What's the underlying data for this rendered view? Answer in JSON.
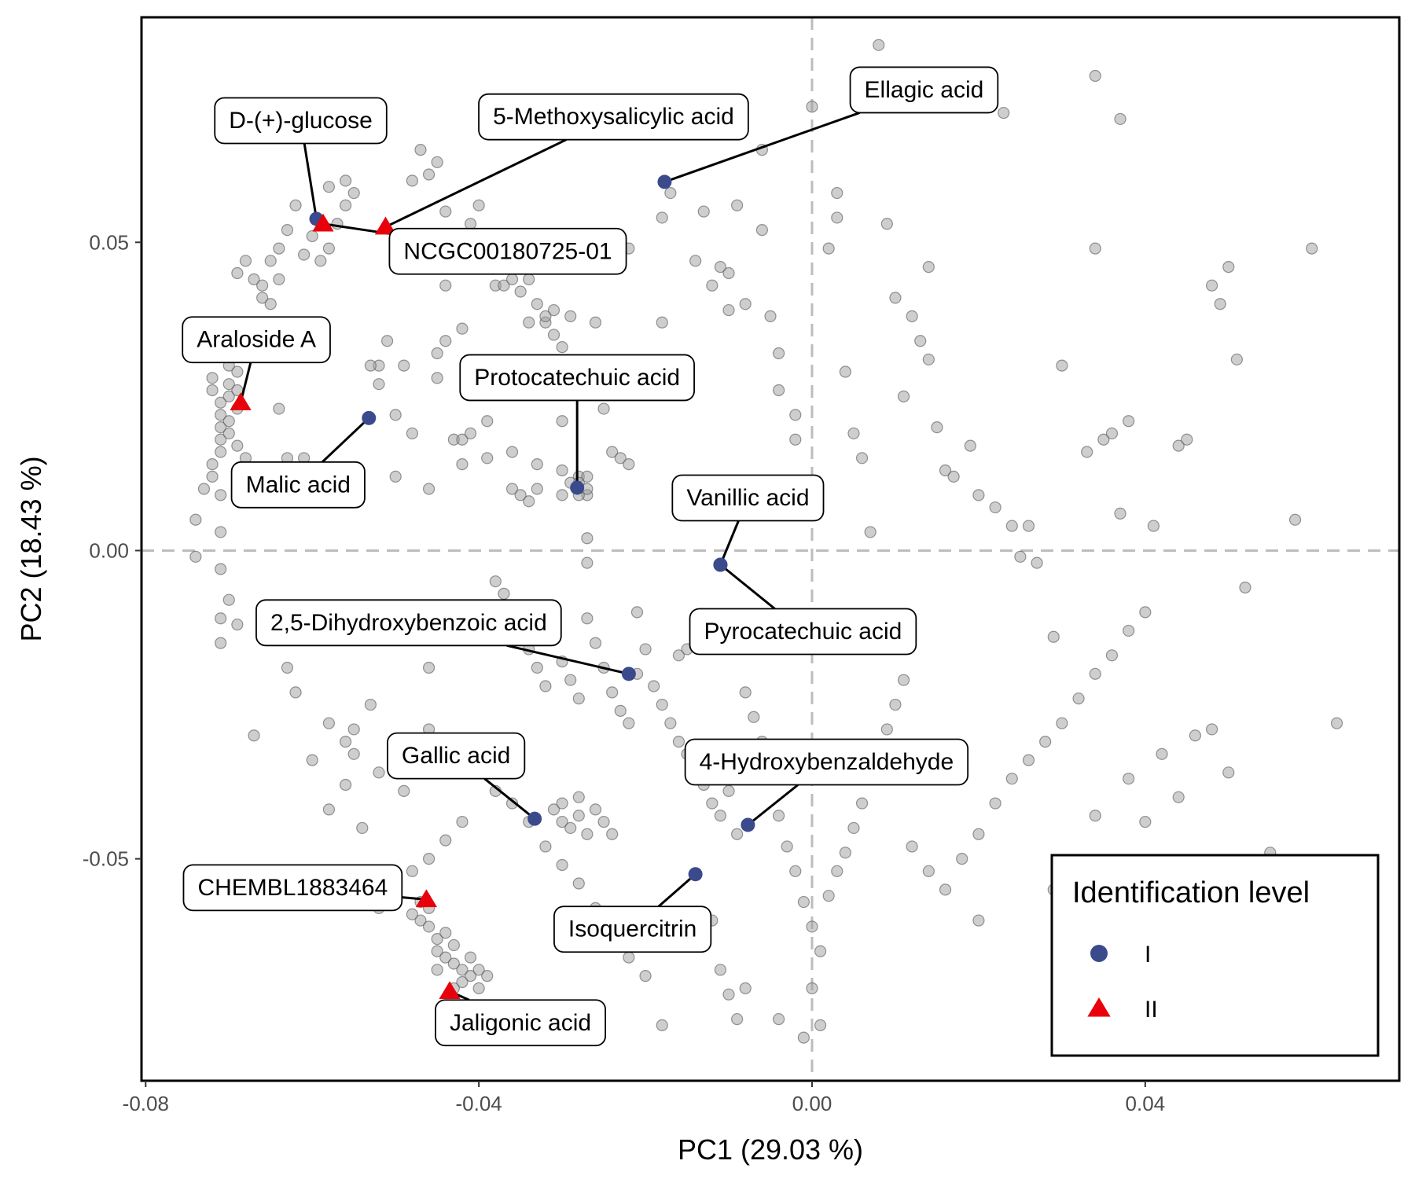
{
  "chart_data": {
    "type": "scatter",
    "xlabel": "PC1 (29.03 %)",
    "ylabel": "PC2 (18.43 %)",
    "xlim": [
      -0.0805,
      0.0705
    ],
    "ylim": [
      -0.086,
      0.0865
    ],
    "x_ticks": [
      -0.08,
      -0.04,
      0.0,
      0.04
    ],
    "x_tick_labels": [
      "-0.08",
      "-0.04",
      "0.00",
      "0.04"
    ],
    "y_ticks": [
      0.05,
      0.0,
      -0.05
    ],
    "y_tick_labels": [
      "0.05",
      "0.00",
      "-0.05"
    ],
    "grid": false,
    "reference_lines": {
      "x": 0,
      "y": 0,
      "style": "dashed",
      "color": "#bdbdbd"
    },
    "legend": {
      "title": "Identification level",
      "position": "bottom-right",
      "entries": [
        {
          "label": "I",
          "shape": "circle",
          "color": "#3a4a8c"
        },
        {
          "label": "II",
          "shape": "triangle",
          "color": "#e8000b"
        }
      ]
    },
    "background_color": "#9e9e9e",
    "background_points": [
      [
        -0.074,
        0.005
      ],
      [
        -0.074,
        -0.001
      ],
      [
        -0.071,
        0.009
      ],
      [
        -0.071,
        0.003
      ],
      [
        -0.071,
        -0.003
      ],
      [
        -0.07,
        -0.008
      ],
      [
        -0.071,
        -0.011
      ],
      [
        -0.071,
        -0.015
      ],
      [
        -0.069,
        -0.012
      ],
      [
        -0.067,
        -0.03
      ],
      [
        -0.063,
        -0.019
      ],
      [
        -0.062,
        -0.023
      ],
      [
        -0.061,
        0.015
      ],
      [
        -0.063,
        0.015
      ],
      [
        -0.064,
        0.023
      ],
      [
        -0.058,
        -0.028
      ],
      [
        -0.056,
        -0.031
      ],
      [
        -0.055,
        -0.029
      ],
      [
        -0.053,
        -0.025
      ],
      [
        -0.052,
        0.027
      ],
      [
        -0.052,
        0.03
      ],
      [
        -0.053,
        0.03
      ],
      [
        -0.051,
        0.034
      ],
      [
        -0.05,
        0.022
      ],
      [
        -0.05,
        0.012
      ],
      [
        -0.049,
        0.03
      ],
      [
        -0.048,
        0.019
      ],
      [
        -0.046,
        0.01
      ],
      [
        -0.045,
        0.032
      ],
      [
        -0.045,
        0.028
      ],
      [
        -0.046,
        -0.019
      ],
      [
        -0.046,
        -0.029
      ],
      [
        -0.044,
        0.043
      ],
      [
        -0.044,
        0.034
      ],
      [
        -0.043,
        0.018
      ],
      [
        -0.042,
        0.014
      ],
      [
        -0.042,
        0.018
      ],
      [
        -0.042,
        0.036
      ],
      [
        -0.041,
        0.019
      ],
      [
        -0.039,
        0.015
      ],
      [
        -0.039,
        0.021
      ],
      [
        -0.038,
        0.043
      ],
      [
        -0.037,
        0.043
      ],
      [
        -0.036,
        0.016
      ],
      [
        -0.036,
        0.01
      ],
      [
        -0.034,
        0.008
      ],
      [
        -0.034,
        0.037
      ],
      [
        -0.032,
        0.037
      ],
      [
        -0.033,
        0.014
      ],
      [
        -0.033,
        0.01
      ],
      [
        -0.035,
        0.009
      ],
      [
        -0.031,
        0.039
      ],
      [
        -0.03,
        0.013
      ],
      [
        -0.03,
        0.009
      ],
      [
        -0.03,
        0.021
      ],
      [
        -0.029,
        0.038
      ],
      [
        -0.028,
        0.012
      ],
      [
        -0.027,
        0.012
      ],
      [
        -0.027,
        0.009
      ],
      [
        -0.027,
        0.002
      ],
      [
        -0.027,
        -0.002
      ],
      [
        -0.026,
        0.037
      ],
      [
        -0.026,
        0.026
      ],
      [
        -0.025,
        0.023
      ],
      [
        -0.024,
        0.016
      ],
      [
        -0.023,
        0.015
      ],
      [
        -0.022,
        0.014
      ],
      [
        -0.022,
        0.049
      ],
      [
        -0.021,
        -0.01
      ],
      [
        -0.02,
        -0.016
      ],
      [
        -0.018,
        0.037
      ],
      [
        -0.018,
        0.054
      ],
      [
        -0.017,
        0.058
      ],
      [
        -0.016,
        -0.017
      ],
      [
        -0.015,
        -0.016
      ],
      [
        -0.014,
        0.047
      ],
      [
        -0.013,
        0.055
      ],
      [
        -0.012,
        0.043
      ],
      [
        -0.011,
        0.046
      ],
      [
        -0.01,
        0.039
      ],
      [
        -0.01,
        0.045
      ],
      [
        -0.009,
        0.056
      ],
      [
        -0.008,
        0.04
      ],
      [
        -0.006,
        0.065
      ],
      [
        -0.006,
        0.052
      ],
      [
        -0.005,
        0.038
      ],
      [
        -0.004,
        0.032
      ],
      [
        -0.004,
        0.026
      ],
      [
        -0.002,
        0.022
      ],
      [
        -0.002,
        0.018
      ],
      [
        0.0,
        0.072
      ],
      [
        0.002,
        0.049
      ],
      [
        0.003,
        0.058
      ],
      [
        0.003,
        0.054
      ],
      [
        0.004,
        0.029
      ],
      [
        0.005,
        0.019
      ],
      [
        0.006,
        0.015
      ],
      [
        0.007,
        0.003
      ],
      [
        0.008,
        0.082
      ],
      [
        0.009,
        0.053
      ],
      [
        0.01,
        0.041
      ],
      [
        0.011,
        0.025
      ],
      [
        0.012,
        0.038
      ],
      [
        0.013,
        0.034
      ],
      [
        0.014,
        0.046
      ],
      [
        0.014,
        0.031
      ],
      [
        0.015,
        0.02
      ],
      [
        0.016,
        0.013
      ],
      [
        0.017,
        0.012
      ],
      [
        0.019,
        0.017
      ],
      [
        0.02,
        0.009
      ],
      [
        0.022,
        0.007
      ],
      [
        0.023,
        0.071
      ],
      [
        0.024,
        0.004
      ],
      [
        0.025,
        -0.001
      ],
      [
        0.026,
        0.004
      ],
      [
        0.027,
        -0.002
      ],
      [
        0.029,
        -0.014
      ],
      [
        0.03,
        0.03
      ],
      [
        0.033,
        0.016
      ],
      [
        0.034,
        0.077
      ],
      [
        0.034,
        0.049
      ],
      [
        0.035,
        0.018
      ],
      [
        0.036,
        0.019
      ],
      [
        0.037,
        0.07
      ],
      [
        0.037,
        0.006
      ],
      [
        0.038,
        0.021
      ],
      [
        0.041,
        0.004
      ],
      [
        0.044,
        0.017
      ],
      [
        0.045,
        0.018
      ],
      [
        0.048,
        0.043
      ],
      [
        0.049,
        0.04
      ],
      [
        0.051,
        0.031
      ],
      [
        0.05,
        0.046
      ],
      [
        0.052,
        -0.006
      ],
      [
        0.058,
        0.005
      ],
      [
        0.06,
        0.049
      ],
      [
        0.063,
        -0.028
      ],
      [
        0.048,
        -0.029
      ],
      [
        -0.048,
        0.06
      ],
      [
        -0.047,
        0.065
      ],
      [
        -0.046,
        0.061
      ],
      [
        -0.045,
        0.063
      ],
      [
        -0.044,
        0.055
      ],
      [
        -0.043,
        0.051
      ],
      [
        -0.042,
        0.048
      ],
      [
        -0.041,
        0.053
      ],
      [
        -0.04,
        0.056
      ],
      [
        -0.039,
        0.049
      ],
      [
        -0.038,
        0.047
      ],
      [
        -0.037,
        0.046
      ],
      [
        -0.036,
        0.044
      ],
      [
        -0.035,
        0.042
      ],
      [
        -0.034,
        0.044
      ],
      [
        -0.033,
        0.04
      ],
      [
        -0.032,
        0.038
      ],
      [
        -0.031,
        0.035
      ],
      [
        -0.03,
        0.033
      ],
      [
        -0.029,
        0.03
      ],
      [
        -0.04,
        -0.012
      ],
      [
        -0.038,
        -0.005
      ],
      [
        -0.037,
        -0.007
      ],
      [
        -0.036,
        -0.01
      ],
      [
        -0.035,
        -0.013
      ],
      [
        -0.034,
        -0.016
      ],
      [
        -0.033,
        -0.019
      ],
      [
        -0.032,
        -0.022
      ],
      [
        -0.031,
        -0.014
      ],
      [
        -0.03,
        -0.018
      ],
      [
        -0.029,
        -0.021
      ],
      [
        -0.028,
        -0.024
      ],
      [
        -0.027,
        -0.011
      ],
      [
        -0.026,
        -0.015
      ],
      [
        -0.025,
        -0.019
      ],
      [
        -0.024,
        -0.023
      ],
      [
        -0.023,
        -0.026
      ],
      [
        -0.022,
        -0.028
      ],
      [
        -0.021,
        -0.02
      ],
      [
        -0.019,
        -0.022
      ],
      [
        -0.018,
        -0.025
      ],
      [
        -0.017,
        -0.028
      ],
      [
        -0.016,
        -0.031
      ],
      [
        -0.015,
        -0.033
      ],
      [
        -0.014,
        -0.036
      ],
      [
        -0.013,
        -0.038
      ],
      [
        -0.012,
        -0.041
      ],
      [
        -0.011,
        -0.043
      ],
      [
        -0.01,
        -0.039
      ],
      [
        -0.009,
        -0.046
      ],
      [
        -0.008,
        -0.023
      ],
      [
        -0.007,
        -0.027
      ],
      [
        -0.006,
        -0.031
      ],
      [
        -0.005,
        -0.035
      ],
      [
        -0.004,
        -0.043
      ],
      [
        -0.003,
        -0.048
      ],
      [
        -0.002,
        -0.052
      ],
      [
        -0.001,
        -0.057
      ],
      [
        0.0,
        -0.061
      ],
      [
        0.001,
        -0.065
      ],
      [
        0.002,
        -0.056
      ],
      [
        0.003,
        -0.052
      ],
      [
        0.004,
        -0.049
      ],
      [
        0.005,
        -0.045
      ],
      [
        0.006,
        -0.041
      ],
      [
        0.007,
        -0.037
      ],
      [
        0.008,
        -0.033
      ],
      [
        0.009,
        -0.029
      ],
      [
        0.01,
        -0.025
      ],
      [
        0.011,
        -0.021
      ],
      [
        -0.012,
        -0.06
      ],
      [
        -0.013,
        -0.064
      ],
      [
        -0.011,
        -0.068
      ],
      [
        -0.01,
        -0.072
      ],
      [
        -0.009,
        -0.076
      ],
      [
        0.0,
        -0.071
      ],
      [
        0.001,
        -0.077
      ],
      [
        -0.001,
        -0.079
      ],
      [
        -0.004,
        -0.076
      ],
      [
        -0.008,
        -0.071
      ],
      [
        -0.018,
        -0.077
      ],
      [
        -0.02,
        -0.069
      ],
      [
        -0.022,
        -0.066
      ],
      [
        -0.024,
        -0.062
      ],
      [
        -0.026,
        -0.058
      ],
      [
        -0.028,
        -0.054
      ],
      [
        -0.03,
        -0.051
      ],
      [
        -0.032,
        -0.048
      ],
      [
        -0.034,
        -0.044
      ],
      [
        -0.036,
        -0.041
      ],
      [
        -0.038,
        -0.039
      ],
      [
        -0.04,
        -0.036
      ],
      [
        -0.042,
        -0.044
      ],
      [
        -0.044,
        -0.047
      ],
      [
        -0.046,
        -0.05
      ],
      [
        -0.048,
        -0.052
      ],
      [
        -0.05,
        -0.055
      ],
      [
        -0.052,
        -0.058
      ],
      [
        -0.054,
        -0.045
      ],
      [
        -0.056,
        -0.038
      ],
      [
        -0.058,
        -0.042
      ],
      [
        -0.06,
        -0.034
      ],
      [
        -0.055,
        -0.033
      ],
      [
        -0.052,
        -0.036
      ],
      [
        -0.049,
        -0.039
      ],
      [
        0.012,
        -0.048
      ],
      [
        0.014,
        -0.052
      ],
      [
        0.016,
        -0.055
      ],
      [
        0.018,
        -0.05
      ],
      [
        0.02,
        -0.046
      ],
      [
        0.022,
        -0.041
      ],
      [
        0.024,
        -0.037
      ],
      [
        0.026,
        -0.034
      ],
      [
        0.028,
        -0.031
      ],
      [
        0.03,
        -0.028
      ],
      [
        0.032,
        -0.024
      ],
      [
        0.034,
        -0.02
      ],
      [
        0.036,
        -0.017
      ],
      [
        0.038,
        -0.013
      ],
      [
        0.04,
        -0.01
      ],
      [
        0.034,
        -0.043
      ],
      [
        0.038,
        -0.037
      ],
      [
        0.042,
        -0.033
      ],
      [
        0.046,
        -0.03
      ],
      [
        0.04,
        -0.044
      ],
      [
        0.044,
        -0.04
      ],
      [
        0.05,
        -0.036
      ],
      [
        0.055,
        -0.049
      ],
      [
        0.029,
        -0.055
      ],
      [
        0.02,
        -0.06
      ]
    ],
    "dense_cluster_points": [
      [
        -0.072,
        0.028
      ],
      [
        -0.072,
        0.026
      ],
      [
        -0.071,
        0.024
      ],
      [
        -0.071,
        0.022
      ],
      [
        -0.071,
        0.02
      ],
      [
        -0.071,
        0.018
      ],
      [
        -0.071,
        0.016
      ],
      [
        -0.072,
        0.014
      ],
      [
        -0.072,
        0.012
      ],
      [
        -0.073,
        0.01
      ],
      [
        -0.07,
        0.027
      ],
      [
        -0.07,
        0.025
      ],
      [
        -0.07,
        0.021
      ],
      [
        -0.07,
        0.019
      ],
      [
        -0.069,
        0.023
      ],
      [
        -0.069,
        0.017
      ],
      [
        -0.068,
        0.015
      ],
      [
        -0.069,
        0.026
      ],
      [
        -0.069,
        0.029
      ],
      [
        -0.07,
        0.03
      ],
      [
        -0.069,
        0.045
      ],
      [
        -0.068,
        0.047
      ],
      [
        -0.067,
        0.044
      ],
      [
        -0.066,
        0.041
      ],
      [
        -0.065,
        0.047
      ],
      [
        -0.064,
        0.049
      ],
      [
        -0.064,
        0.044
      ],
      [
        -0.063,
        0.052
      ],
      [
        -0.062,
        0.056
      ],
      [
        -0.061,
        0.048
      ],
      [
        -0.06,
        0.051
      ],
      [
        -0.059,
        0.047
      ],
      [
        -0.058,
        0.049
      ],
      [
        -0.057,
        0.053
      ],
      [
        -0.056,
        0.056
      ],
      [
        -0.058,
        0.059
      ],
      [
        -0.056,
        0.06
      ],
      [
        -0.055,
        0.058
      ],
      [
        -0.066,
        0.043
      ],
      [
        -0.065,
        0.04
      ],
      [
        -0.047,
        -0.06
      ],
      [
        -0.046,
        -0.061
      ],
      [
        -0.045,
        -0.063
      ],
      [
        -0.045,
        -0.065
      ],
      [
        -0.044,
        -0.066
      ],
      [
        -0.043,
        -0.067
      ],
      [
        -0.042,
        -0.068
      ],
      [
        -0.041,
        -0.069
      ],
      [
        -0.04,
        -0.068
      ],
      [
        -0.041,
        -0.066
      ],
      [
        -0.043,
        -0.064
      ],
      [
        -0.044,
        -0.062
      ],
      [
        -0.046,
        -0.058
      ],
      [
        -0.047,
        -0.057
      ],
      [
        -0.048,
        -0.059
      ],
      [
        -0.042,
        -0.07
      ],
      [
        -0.04,
        -0.071
      ],
      [
        -0.039,
        -0.069
      ],
      [
        -0.043,
        -0.071
      ],
      [
        -0.045,
        -0.068
      ],
      [
        -0.031,
        -0.042
      ],
      [
        -0.03,
        -0.044
      ],
      [
        -0.029,
        -0.045
      ],
      [
        -0.028,
        -0.043
      ],
      [
        -0.027,
        -0.046
      ],
      [
        -0.026,
        -0.042
      ],
      [
        -0.028,
        -0.04
      ],
      [
        -0.03,
        -0.041
      ],
      [
        -0.025,
        -0.044
      ],
      [
        -0.024,
        -0.046
      ],
      [
        -0.028,
        0.011
      ],
      [
        -0.027,
        0.01
      ],
      [
        -0.029,
        0.011
      ],
      [
        -0.028,
        0.009
      ]
    ],
    "labeled_points": [
      {
        "name": "D-(+)-glucose",
        "x": -0.0595,
        "y": 0.0538,
        "level": "I"
      },
      {
        "name": "5-Methoxysalicylic acid",
        "x": -0.0512,
        "y": 0.0525,
        "level": "II"
      },
      {
        "name": "Ellagic acid",
        "x": -0.0177,
        "y": 0.0598,
        "level": "I"
      },
      {
        "name": "NCGC00180725-01",
        "x": -0.0587,
        "y": 0.053,
        "level": "II"
      },
      {
        "name": "Araloside A",
        "x": -0.0686,
        "y": 0.024,
        "level": "II"
      },
      {
        "name": "Protocatechuic acid",
        "x": -0.0282,
        "y": 0.0102,
        "level": "I"
      },
      {
        "name": "Malic acid",
        "x": -0.0532,
        "y": 0.0215,
        "level": "I"
      },
      {
        "name": "Vanillic acid",
        "x": -0.011,
        "y": -0.0023,
        "level": "I"
      },
      {
        "name": "Pyrocatechuic acid",
        "x": -0.011,
        "y": -0.0023,
        "level": "I"
      },
      {
        "name": "2,5-Dihydroxybenzoic acid",
        "x": -0.022,
        "y": -0.02,
        "level": "I"
      },
      {
        "name": "Gallic acid",
        "x": -0.0333,
        "y": -0.0435,
        "level": "I"
      },
      {
        "name": "4-Hydroxybenzaldehyde",
        "x": -0.0077,
        "y": -0.0445,
        "level": "I"
      },
      {
        "name": "CHEMBL1883464",
        "x": -0.0463,
        "y": -0.0566,
        "level": "II"
      },
      {
        "name": "Isoquercitrin",
        "x": -0.014,
        "y": -0.0525,
        "level": "I"
      },
      {
        "name": "Jaligonic acid",
        "x": -0.0435,
        "y": -0.0715,
        "level": "II"
      }
    ]
  }
}
